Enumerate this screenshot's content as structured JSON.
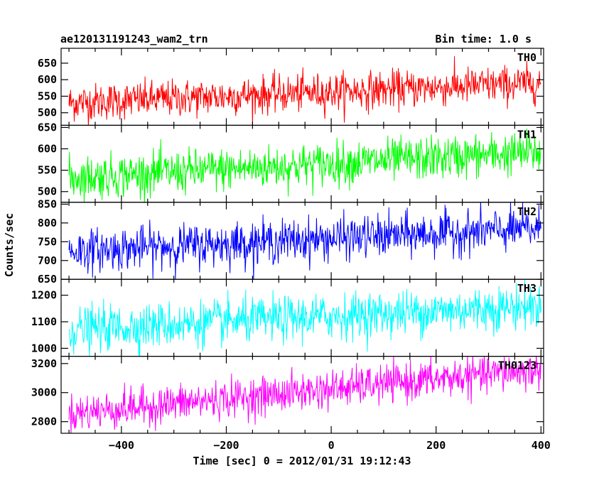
{
  "header": {
    "title": "ae120131191243_wam2_trn",
    "bin_time": "Bin time: 1.0 s"
  },
  "chart_data": {
    "type": "line",
    "xlabel": "Time [sec] 0 = 2012/01/31 19:12:43",
    "ylabel": "Counts/sec",
    "xlim": [
      -515,
      405
    ],
    "x_start": -500,
    "x_end": 400,
    "x_step": 1,
    "x_ticks": [
      -400,
      -200,
      0,
      200,
      400
    ],
    "x_tick_labels": [
      "−400",
      "−200",
      "0",
      "200",
      "400"
    ],
    "grid": false,
    "panels": [
      {
        "name": "TH0",
        "color": "#ff0000",
        "ylim": [
          462,
          695
        ],
        "yticks": [
          500,
          550,
          600,
          650
        ],
        "trend": {
          "start": 530,
          "end": 590
        },
        "noise_sd": 28,
        "spike_range": [
          455,
          705
        ]
      },
      {
        "name": "TH1",
        "color": "#00ff00",
        "ylim": [
          475,
          655
        ],
        "yticks": [
          500,
          550,
          600,
          650
        ],
        "trend": {
          "start": 532,
          "end": 592
        },
        "noise_sd": 25,
        "spike_range": [
          465,
          660
        ]
      },
      {
        "name": "TH2",
        "color": "#0000ff",
        "ylim": [
          650,
          855
        ],
        "yticks": [
          650,
          700,
          750,
          800,
          850
        ],
        "trend": {
          "start": 725,
          "end": 785
        },
        "noise_sd": 28,
        "spike_range": [
          640,
          860
        ]
      },
      {
        "name": "TH3",
        "color": "#00ffff",
        "ylim": [
          970,
          1260
        ],
        "yticks": [
          1000,
          1100,
          1200
        ],
        "trend": {
          "start": 1070,
          "end": 1160
        },
        "noise_sd": 42,
        "spike_range": [
          960,
          1270
        ]
      },
      {
        "name": "TH0123",
        "color": "#ff00ff",
        "ylim": [
          2720,
          3250
        ],
        "yticks": [
          2800,
          3000,
          3200
        ],
        "trend": {
          "start": 2855,
          "end": 3160
        },
        "noise_sd": 65,
        "spike_range": [
          2700,
          3260
        ]
      }
    ]
  }
}
